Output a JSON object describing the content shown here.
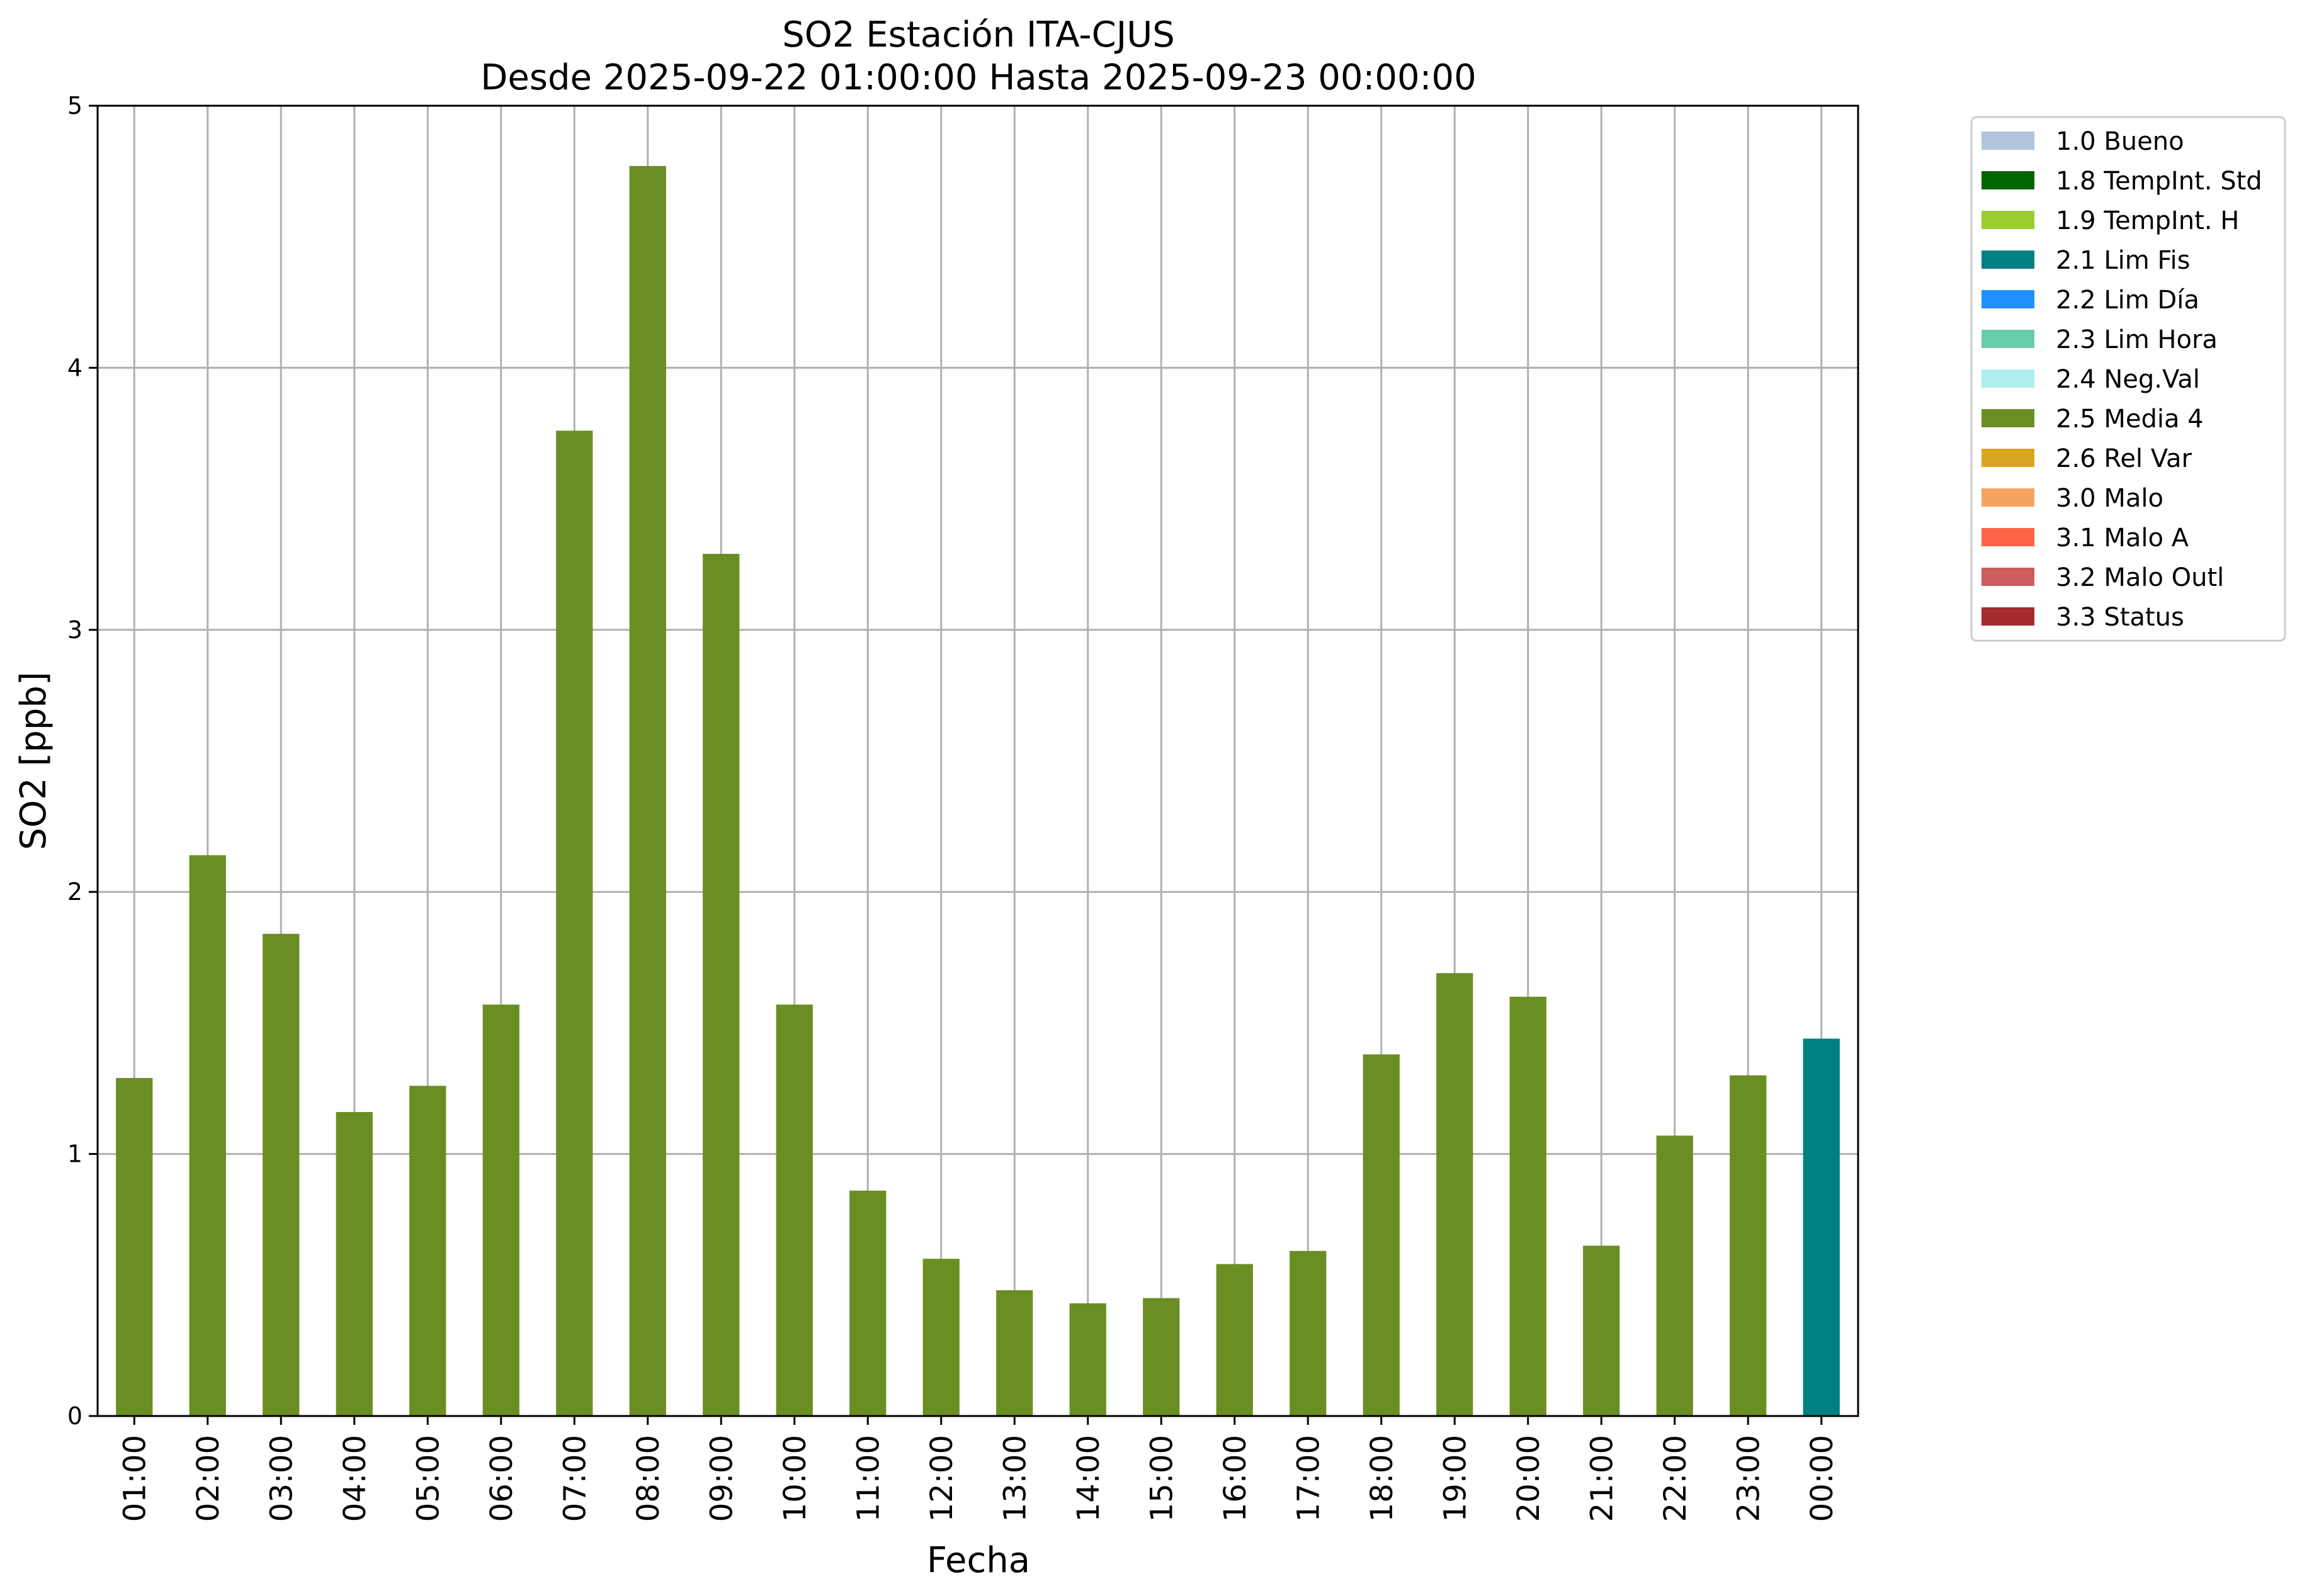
{
  "chart_data": {
    "type": "bar",
    "title": "SO2 Estación ITA-CJUS",
    "subtitle": "Desde 2025-09-22 01:00:00 Hasta 2025-09-23 00:00:00",
    "xlabel": "Fecha",
    "ylabel": "SO2 [ppb]",
    "ylim": [
      0,
      5
    ],
    "yticks": [
      "0",
      "1",
      "2",
      "3",
      "4",
      "5"
    ],
    "grid": true,
    "legend_position": "outside-top-right",
    "categories": [
      "01:00",
      "02:00",
      "03:00",
      "04:00",
      "05:00",
      "06:00",
      "07:00",
      "08:00",
      "09:00",
      "10:00",
      "11:00",
      "12:00",
      "13:00",
      "14:00",
      "15:00",
      "16:00",
      "17:00",
      "18:00",
      "19:00",
      "20:00",
      "21:00",
      "22:00",
      "23:00",
      "00:00"
    ],
    "values": [
      1.29,
      2.14,
      1.84,
      1.16,
      1.26,
      1.57,
      3.76,
      4.77,
      3.29,
      1.57,
      0.86,
      0.6,
      0.48,
      0.43,
      0.45,
      0.58,
      0.63,
      1.38,
      1.69,
      1.6,
      0.65,
      1.07,
      1.3,
      1.44
    ],
    "bar_flags": [
      "2.5 Media 4",
      "2.5 Media 4",
      "2.5 Media 4",
      "2.5 Media 4",
      "2.5 Media 4",
      "2.5 Media 4",
      "2.5 Media 4",
      "2.5 Media 4",
      "2.5 Media 4",
      "2.5 Media 4",
      "2.5 Media 4",
      "2.5 Media 4",
      "2.5 Media 4",
      "2.5 Media 4",
      "2.5 Media 4",
      "2.5 Media 4",
      "2.5 Media 4",
      "2.5 Media 4",
      "2.5 Media 4",
      "2.5 Media 4",
      "2.5 Media 4",
      "2.5 Media 4",
      "2.5 Media 4",
      "2.1 Lim Fis"
    ],
    "legend": [
      {
        "label": "1.0 Bueno",
        "color": "#b0c4de"
      },
      {
        "label": "1.8 TempInt. Std",
        "color": "#006400"
      },
      {
        "label": "1.9 TempInt. H",
        "color": "#9acd32"
      },
      {
        "label": "2.1 Lim Fis",
        "color": "#008080"
      },
      {
        "label": "2.2 Lim Día",
        "color": "#1e90ff"
      },
      {
        "label": "2.3 Lim Hora",
        "color": "#66cdaa"
      },
      {
        "label": "2.4 Neg.Val",
        "color": "#afeeee"
      },
      {
        "label": "2.5 Media 4",
        "color": "#6b8e23"
      },
      {
        "label": "2.6 Rel Var",
        "color": "#daa520"
      },
      {
        "label": "3.0 Malo",
        "color": "#f4a460"
      },
      {
        "label": "3.1 Malo A",
        "color": "#ff6347"
      },
      {
        "label": "3.2 Malo Outl",
        "color": "#cd5c5c"
      },
      {
        "label": "3.3 Status",
        "color": "#a52a2a"
      }
    ]
  }
}
